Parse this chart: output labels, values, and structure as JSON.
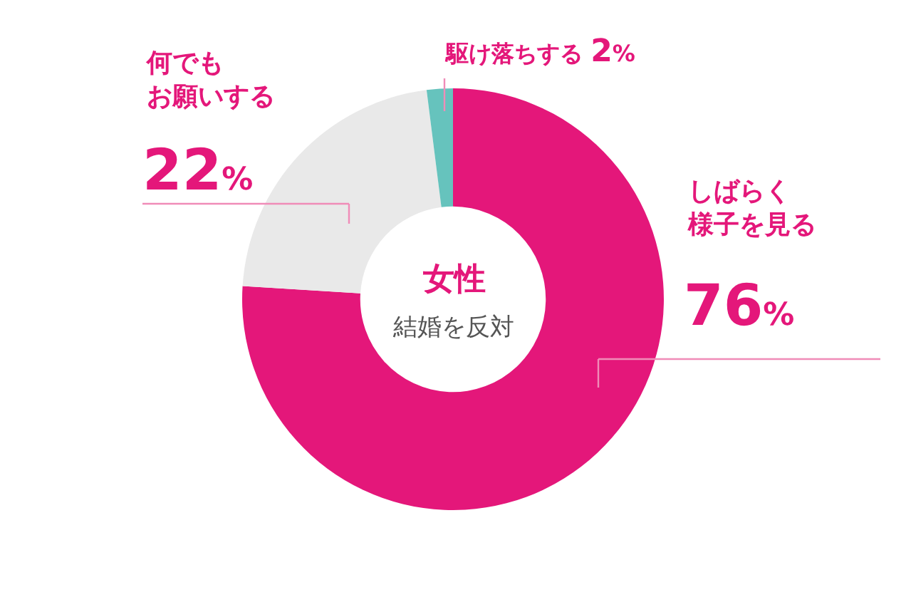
{
  "chart_data": {
    "type": "donut",
    "title": "女性",
    "subtitle": "結婚を反対",
    "categories": [
      "しばらく様子を見る",
      "何でもお願いする",
      "駆け落ちする"
    ],
    "values": [
      76,
      22,
      2
    ],
    "colors": [
      "#e4177a",
      "#e9e9e9",
      "#66c3bd"
    ],
    "value_labels": [
      "76%",
      "22%",
      "2%"
    ]
  }
}
